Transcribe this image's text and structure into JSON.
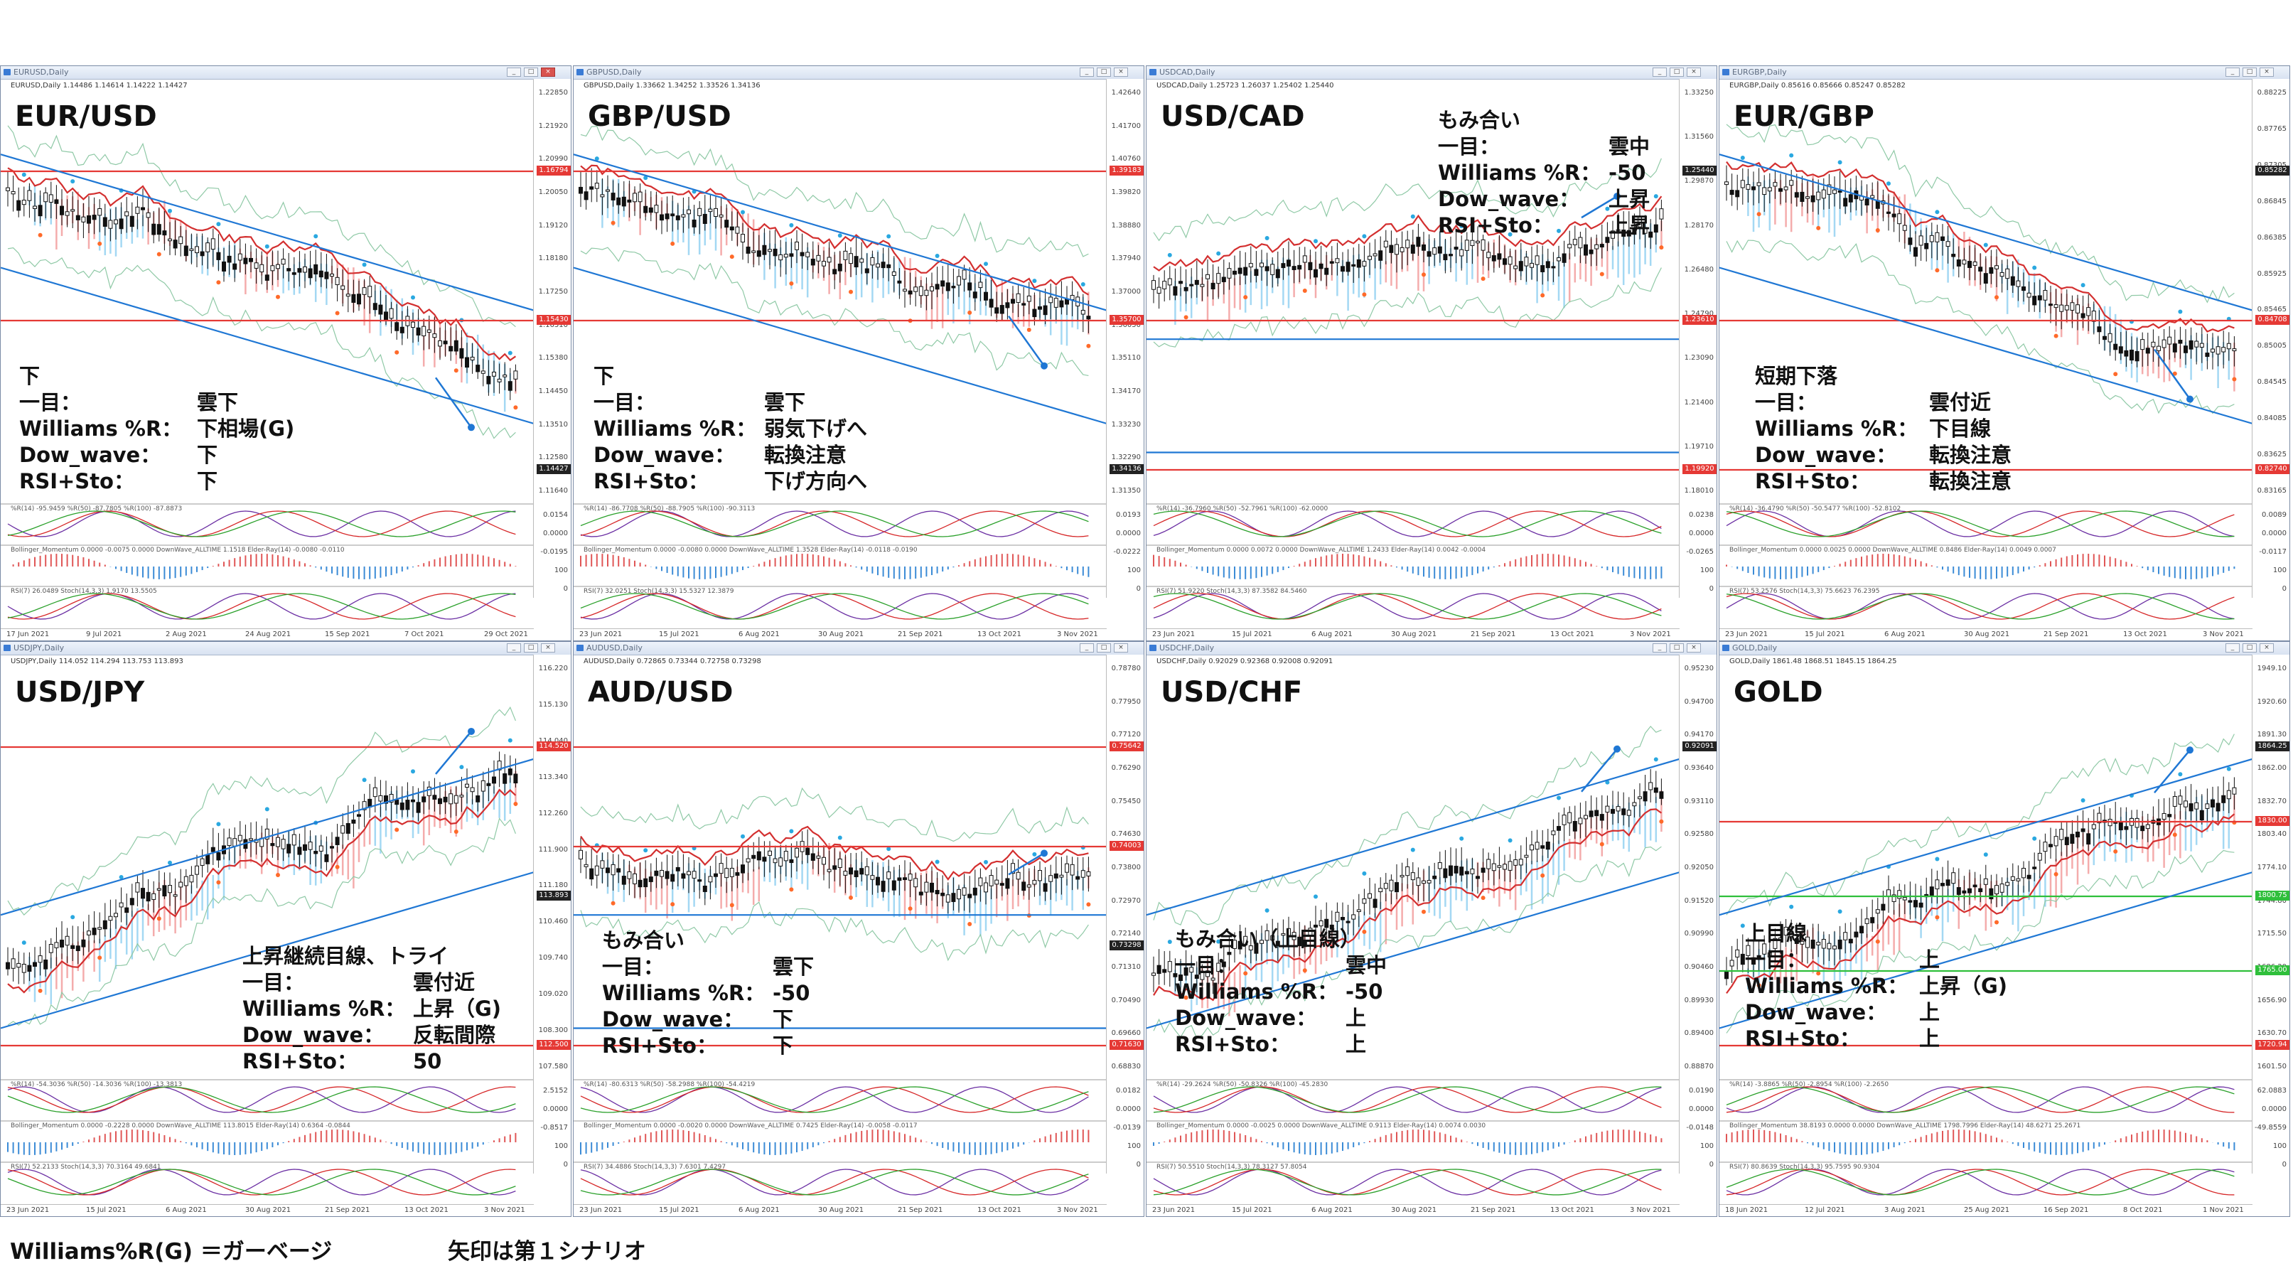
{
  "panels": [
    {
      "id": "eurusd",
      "window_title": "EURUSD,Daily",
      "info_line": "EURUSD,Daily  1.14486 1.14614 1.14222 1.14427",
      "pair": "EUR/USD",
      "trend": "down",
      "note_heading": "下",
      "notes": [
        {
          "k": "一目：",
          "v": "雲下"
        },
        {
          "k": "Williams %R：",
          "v": "下相場(G)"
        },
        {
          "k": "Dow_wave：",
          "v": "下"
        },
        {
          "k": "RSI+Sto：",
          "v": "下"
        }
      ],
      "y_ticks": [
        "1.22850",
        "1.21920",
        "1.20990",
        "1.20050",
        "1.19120",
        "1.18180",
        "1.17250",
        "1.16310",
        "1.15380",
        "1.14450",
        "1.13510",
        "1.12580",
        "1.11640"
      ],
      "price_tags": [
        {
          "v": "1.16794",
          "color": "#e53935"
        },
        {
          "v": "1.15430",
          "color": "#e53935"
        },
        {
          "v": "1.14427",
          "color": "#222222"
        }
      ],
      "x_ticks": [
        "17 Jun 2021",
        "9 Jul 2021",
        "2 Aug 2021",
        "24 Aug 2021",
        "15 Sep 2021",
        "7 Oct 2021",
        "29 Oct 2021"
      ],
      "sub_labels": [
        "%R(14) -95.9459  %R(50) -87.7805  %R(100) -87.8873",
        "Bollinger_Momentum 0.0000 -0.0075 0.0000  DownWave_ALLTIME 1.1518  Elder-Ray(14) -0.0080 -0.0110",
        "RSI(7) 26.0489  Stoch(14,3,3) 1.9170 13.5505"
      ],
      "sub_ticks": [
        "0.0154",
        "0.0000",
        "-0.0195",
        "100",
        "0"
      ]
    },
    {
      "id": "gbpusd",
      "window_title": "GBPUSD,Daily",
      "info_line": "GBPUSD,Daily  1.33662 1.34252 1.33526 1.34136",
      "pair": "GBP/USD",
      "trend": "down",
      "note_heading": "下",
      "notes": [
        {
          "k": "一目：",
          "v": "雲下"
        },
        {
          "k": "Williams %R：",
          "v": "弱気下げへ"
        },
        {
          "k": "Dow_wave：",
          "v": "転換注意"
        },
        {
          "k": "RSI+Sto：",
          "v": "下げ方向へ"
        }
      ],
      "y_ticks": [
        "1.42640",
        "1.41700",
        "1.40760",
        "1.39820",
        "1.38880",
        "1.37940",
        "1.37000",
        "1.36050",
        "1.35110",
        "1.34170",
        "1.33230",
        "1.32290",
        "1.31350"
      ],
      "price_tags": [
        {
          "v": "1.39183",
          "color": "#e53935"
        },
        {
          "v": "1.35700",
          "color": "#e53935"
        },
        {
          "v": "1.34136",
          "color": "#222222"
        }
      ],
      "x_ticks": [
        "23 Jun 2021",
        "15 Jul 2021",
        "6 Aug 2021",
        "30 Aug 2021",
        "21 Sep 2021",
        "13 Oct 2021",
        "3 Nov 2021"
      ],
      "sub_labels": [
        "%R(14) -86.7708  %R(50) -88.7905  %R(100) -90.3113",
        "Bollinger_Momentum 0.0000 -0.0080 0.0000  DownWave_ALLTIME 1.3528  Elder-Ray(14) -0.0118 -0.0190",
        "RSI(7) 32.0251  Stoch(14,3,3) 15.5327 12.3879"
      ],
      "sub_ticks": [
        "0.0193",
        "0.0000",
        "-0.0222",
        "100",
        "0"
      ]
    },
    {
      "id": "usdcad",
      "window_title": "USDCAD,Daily",
      "info_line": "USDCAD,Daily  1.25723 1.26037 1.25402 1.25440",
      "pair": "USD/CAD",
      "trend": "flat",
      "note_heading": "もみ合い",
      "notes": [
        {
          "k": "一目：",
          "v": "雲中"
        },
        {
          "k": "Williams %R：",
          "v": "-50"
        },
        {
          "k": "Dow_wave：",
          "v": "上昇"
        },
        {
          "k": "RSI+Sto：",
          "v": "上昇"
        }
      ],
      "y_ticks": [
        "1.33250",
        "1.31560",
        "1.29870",
        "1.28170",
        "1.26480",
        "1.24790",
        "1.23090",
        "1.21400",
        "1.19710",
        "1.18010"
      ],
      "price_tags": [
        {
          "v": "1.25440",
          "color": "#222222"
        },
        {
          "v": "1.23610",
          "color": "#e53935"
        },
        {
          "v": "1.19920",
          "color": "#e53935"
        }
      ],
      "x_ticks": [
        "23 Jun 2021",
        "15 Jul 2021",
        "6 Aug 2021",
        "30 Aug 2021",
        "21 Sep 2021",
        "13 Oct 2021",
        "3 Nov 2021"
      ],
      "sub_labels": [
        "%R(14) -36.7960  %R(50) -52.7961  %R(100) -62.0000",
        "Bollinger_Momentum 0.0000 0.0072 0.0000  DownWave_ALLTIME 1.2433  Elder-Ray(14) 0.0042 -0.0004",
        "RSI(7) 51.9220  Stoch(14,3,3) 87.3582 84.5460"
      ],
      "sub_ticks": [
        "0.0238",
        "0.0000",
        "-0.0265",
        "100",
        "0"
      ]
    },
    {
      "id": "eurgbp",
      "window_title": "EURGBP,Daily",
      "info_line": "EURGBP,Daily  0.85616 0.85666 0.85247 0.85282",
      "pair": "EUR/GBP",
      "trend": "down",
      "note_heading": "短期下落",
      "notes": [
        {
          "k": "一目：",
          "v": "雲付近"
        },
        {
          "k": "Williams %R：",
          "v": "下目線"
        },
        {
          "k": "Dow_wave：",
          "v": "転換注意"
        },
        {
          "k": "RSI+Sto：",
          "v": "転換注意"
        }
      ],
      "y_ticks": [
        "0.88225",
        "0.87765",
        "0.87305",
        "0.86845",
        "0.86385",
        "0.85925",
        "0.85465",
        "0.85005",
        "0.84545",
        "0.84085",
        "0.83625",
        "0.83165"
      ],
      "price_tags": [
        {
          "v": "0.85282",
          "color": "#222222"
        },
        {
          "v": "0.84708",
          "color": "#e53935"
        },
        {
          "v": "0.82740",
          "color": "#e53935"
        }
      ],
      "x_ticks": [
        "23 Jun 2021",
        "15 Jul 2021",
        "6 Aug 2021",
        "30 Aug 2021",
        "21 Sep 2021",
        "13 Oct 2021",
        "3 Nov 2021"
      ],
      "sub_labels": [
        "%R(14) -36.4790  %R(50) -50.5477  %R(100) -52.8102",
        "Bollinger_Momentum 0.0000 0.0025 0.0000  DownWave_ALLTIME 0.8486  Elder-Ray(14) 0.0049 0.0007",
        "RSI(7) 53.2576  Stoch(14,3,3) 75.6623 76.2395"
      ],
      "sub_ticks": [
        "0.0089",
        "0.0000",
        "-0.0117",
        "100",
        "0"
      ]
    },
    {
      "id": "usdjpy",
      "window_title": "USDJPY,Daily",
      "info_line": "USDJPY,Daily  114.052 114.294 113.753 113.893",
      "pair": "USD/JPY",
      "trend": "up",
      "note_heading": "上昇継続目線、トライ",
      "notes": [
        {
          "k": "一目：",
          "v": "雲付近"
        },
        {
          "k": "Williams %R：",
          "v": "上昇（G)"
        },
        {
          "k": "Dow_wave：",
          "v": "反転間際"
        },
        {
          "k": "RSI+Sto：",
          "v": "50"
        }
      ],
      "y_ticks": [
        "116.220",
        "115.130",
        "114.040",
        "113.340",
        "112.260",
        "111.900",
        "111.180",
        "110.460",
        "109.740",
        "109.020",
        "108.300",
        "107.580"
      ],
      "price_tags": [
        {
          "v": "114.520",
          "color": "#e53935"
        },
        {
          "v": "113.893",
          "color": "#222222"
        },
        {
          "v": "112.500",
          "color": "#e53935"
        }
      ],
      "x_ticks": [
        "23 Jun 2021",
        "15 Jul 2021",
        "6 Aug 2021",
        "30 Aug 2021",
        "21 Sep 2021",
        "13 Oct 2021",
        "3 Nov 2021"
      ],
      "sub_labels": [
        "%R(14) -54.3036  %R(50) -14.3036  %R(100) -13.3813",
        "Bollinger_Momentum 0.0000 -0.2228 0.0000  DownWave_ALLTIME 113.8015  Elder-Ray(14) 0.6364 -0.0844",
        "RSI(7) 52.2133  Stoch(14,3,3) 70.3164 49.6841"
      ],
      "sub_ticks": [
        "2.5152",
        "0.0000",
        "-0.8517",
        "100",
        "0"
      ]
    },
    {
      "id": "audusd",
      "window_title": "AUDUSD,Daily",
      "info_line": "AUDUSD,Daily  0.72865 0.73344 0.72758 0.73298",
      "pair": "AUD/USD",
      "trend": "flat",
      "note_heading": "もみ合い",
      "notes": [
        {
          "k": "一目：",
          "v": "雲下"
        },
        {
          "k": "Williams %R：",
          "v": "-50"
        },
        {
          "k": "Dow_wave：",
          "v": "下"
        },
        {
          "k": "RSI+Sto：",
          "v": "下"
        }
      ],
      "y_ticks": [
        "0.78780",
        "0.77950",
        "0.77120",
        "0.76290",
        "0.75450",
        "0.74630",
        "0.73800",
        "0.72970",
        "0.72140",
        "0.71310",
        "0.70490",
        "0.69660",
        "0.68830"
      ],
      "price_tags": [
        {
          "v": "0.75642",
          "color": "#e53935"
        },
        {
          "v": "0.74003",
          "color": "#e53935"
        },
        {
          "v": "0.73298",
          "color": "#222222"
        },
        {
          "v": "0.71630",
          "color": "#e53935"
        }
      ],
      "x_ticks": [
        "23 Jun 2021",
        "15 Jul 2021",
        "6 Aug 2021",
        "30 Aug 2021",
        "21 Sep 2021",
        "13 Oct 2021",
        "3 Nov 2021"
      ],
      "sub_labels": [
        "%R(14) -80.6313  %R(50) -58.2988  %R(100) -54.4219",
        "Bollinger_Momentum 0.0000 -0.0020 0.0000  DownWave_ALLTIME 0.7425  Elder-Ray(14) -0.0058 -0.0117",
        "RSI(7) 34.4886  Stoch(14,3,3) 7.6301 7.4297"
      ],
      "sub_ticks": [
        "0.0182",
        "0.0000",
        "-0.0139",
        "100",
        "0"
      ]
    },
    {
      "id": "usdchf",
      "window_title": "USDCHF,Daily",
      "info_line": "USDCHF,Daily  0.92029 0.92368 0.92008 0.92091",
      "pair": "USD/CHF",
      "trend": "up",
      "note_heading": "もみ合い（上目線）",
      "notes": [
        {
          "k": "一目：",
          "v": "雲中"
        },
        {
          "k": "Williams %R：",
          "v": "-50"
        },
        {
          "k": "Dow_wave：",
          "v": "上"
        },
        {
          "k": "RSI+Sto：",
          "v": "上"
        }
      ],
      "y_ticks": [
        "0.95230",
        "0.94700",
        "0.94170",
        "0.93640",
        "0.93110",
        "0.92580",
        "0.92050",
        "0.91520",
        "0.90990",
        "0.90460",
        "0.89930",
        "0.89400",
        "0.88870"
      ],
      "price_tags": [
        {
          "v": "0.92091",
          "color": "#222222"
        }
      ],
      "x_ticks": [
        "23 Jun 2021",
        "15 Jul 2021",
        "6 Aug 2021",
        "30 Aug 2021",
        "21 Sep 2021",
        "13 Oct 2021",
        "3 Nov 2021"
      ],
      "sub_labels": [
        "%R(14) -29.2624  %R(50) -50.8326  %R(100) -45.2830",
        "Bollinger_Momentum 0.0000 -0.0025 0.0000  DownWave_ALLTIME 0.9113  Elder-Ray(14) 0.0074 0.0030",
        "RSI(7) 50.5510  Stoch(14,3,3) 78.3127 57.8054"
      ],
      "sub_ticks": [
        "0.0190",
        "0.0000",
        "-0.0148",
        "100",
        "0"
      ]
    },
    {
      "id": "gold",
      "window_title": "GOLD,Daily",
      "info_line": "GOLD,Daily  1861.48 1868.51 1845.15 1864.25",
      "pair": "GOLD",
      "trend": "up",
      "note_heading": "上目線",
      "notes": [
        {
          "k": "一目：",
          "v": "上"
        },
        {
          "k": "Williams %R：",
          "v": "上昇（G)"
        },
        {
          "k": "Dow_wave：",
          "v": "上"
        },
        {
          "k": "RSI+Sto：",
          "v": "上"
        }
      ],
      "y_ticks": [
        "1949.10",
        "1920.60",
        "1891.30",
        "1862.00",
        "1832.70",
        "1803.40",
        "1774.10",
        "1744.80",
        "1715.50",
        "1686.20",
        "1656.90",
        "1630.70",
        "1601.50"
      ],
      "price_tags": [
        {
          "v": "1864.25",
          "color": "#222222"
        },
        {
          "v": "1830.00",
          "color": "#e53935"
        },
        {
          "v": "1800.75",
          "color": "#2fbf3b"
        },
        {
          "v": "1765.00",
          "color": "#2fbf3b"
        },
        {
          "v": "1720.94",
          "color": "#e53935"
        }
      ],
      "x_ticks": [
        "18 Jun 2021",
        "12 Jul 2021",
        "3 Aug 2021",
        "25 Aug 2021",
        "16 Sep 2021",
        "8 Oct 2021",
        "1 Nov 2021"
      ],
      "sub_labels": [
        "%R(14) -3.8865  %R(50) -2.8954  %R(100) -2.2650",
        "Bollinger_Momentum 38.8193 0.0000 0.0000  DownWave_ALLTIME 1798.7996  Elder-Ray(14) 48.6271 25.2671",
        "RSI(7) 80.8639  Stoch(14,3,3) 95.7595 90.9304"
      ],
      "sub_ticks": [
        "62.0883",
        "0.0000",
        "-49.8559",
        "100",
        "0"
      ]
    }
  ],
  "footer": {
    "legend": "Williams%R(G) ＝ガーベージ",
    "arrow_note": "矢印は第１シナリオ"
  },
  "colors": {
    "trendline": "#1f77d4",
    "support_red": "#e53935",
    "support_green": "#2fbf3b",
    "cloud_blue": "#7ec8ee",
    "cloud_red": "#f08a8a",
    "candle": "#111111"
  }
}
